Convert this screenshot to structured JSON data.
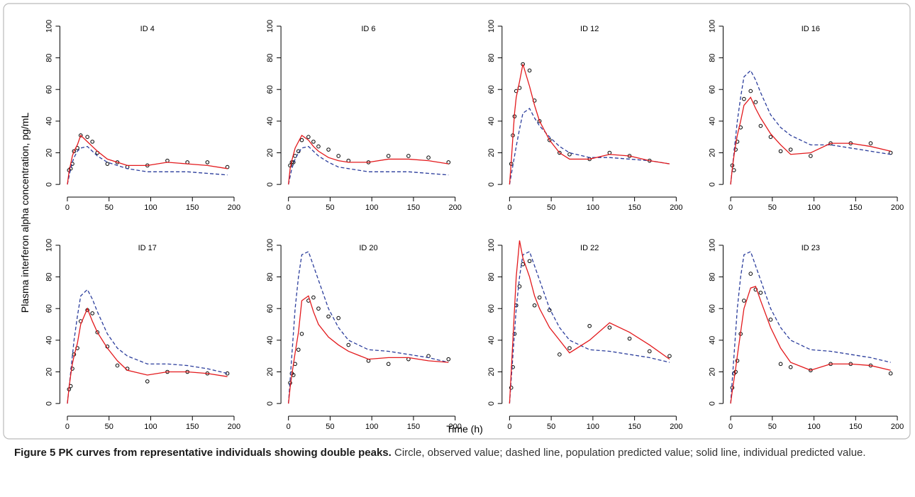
{
  "chart_data": [
    {
      "type": "line",
      "title": "ID 4",
      "x": [
        0,
        2,
        4,
        6,
        8,
        12,
        16,
        24,
        30,
        36,
        48,
        60,
        72,
        96,
        120,
        144,
        168,
        192
      ],
      "xlim": [
        -9,
        201
      ],
      "ylim": [
        -8,
        104
      ],
      "xticks": [
        0,
        50,
        100,
        150,
        200
      ],
      "yticks": [
        0,
        20,
        40,
        60,
        80,
        100
      ],
      "series": [
        {
          "style": "points",
          "color": "#000000",
          "values": [
            null,
            9,
            10,
            13,
            21,
            23,
            31,
            30,
            27,
            20,
            13,
            14,
            11,
            12,
            15,
            14,
            14,
            11
          ]
        },
        {
          "style": "dashed",
          "color": "#2b3d9c",
          "values": [
            0,
            5,
            10,
            14,
            17,
            21,
            23,
            24,
            21,
            18,
            14,
            12,
            10,
            8,
            8,
            8,
            7,
            6
          ]
        },
        {
          "style": "solid",
          "color": "#e3191c",
          "values": [
            0,
            8,
            13,
            18,
            21,
            25,
            31,
            27,
            24,
            21,
            16,
            14,
            12,
            12,
            14,
            13,
            12,
            10
          ]
        }
      ]
    },
    {
      "type": "line",
      "title": "ID 6",
      "x": [
        0,
        2,
        4,
        6,
        8,
        12,
        16,
        24,
        30,
        36,
        48,
        60,
        72,
        96,
        120,
        144,
        168,
        192
      ],
      "xlim": [
        -9,
        201
      ],
      "ylim": [
        -8,
        104
      ],
      "xticks": [
        0,
        50,
        100,
        150,
        200
      ],
      "yticks": [
        0,
        20,
        40,
        60,
        80,
        100
      ],
      "series": [
        {
          "style": "points",
          "color": "#000000",
          "values": [
            null,
            12,
            14,
            14,
            18,
            21,
            28,
            30,
            27,
            24,
            22,
            18,
            15,
            14,
            18,
            18,
            17,
            14
          ]
        },
        {
          "style": "dashed",
          "color": "#2b3d9c",
          "values": [
            0,
            5,
            10,
            13,
            16,
            20,
            23,
            24,
            21,
            18,
            14,
            11,
            10,
            8,
            8,
            8,
            7,
            6
          ]
        },
        {
          "style": "solid",
          "color": "#e3191c",
          "values": [
            0,
            10,
            15,
            19,
            23,
            27,
            31,
            28,
            24,
            21,
            17,
            15,
            14,
            14,
            16,
            16,
            15,
            13
          ]
        }
      ]
    },
    {
      "type": "line",
      "title": "ID 12",
      "x": [
        0,
        2,
        4,
        6,
        8,
        12,
        16,
        24,
        30,
        36,
        48,
        60,
        72,
        96,
        120,
        144,
        168,
        192
      ],
      "xlim": [
        -9,
        201
      ],
      "ylim": [
        -8,
        104
      ],
      "xticks": [
        0,
        50,
        100,
        150,
        200
      ],
      "yticks": [
        0,
        20,
        40,
        60,
        80,
        100
      ],
      "series": [
        {
          "style": "points",
          "color": "#000000",
          "values": [
            null,
            13,
            31,
            43,
            59,
            61,
            76,
            72,
            53,
            40,
            28,
            20,
            19,
            16,
            20,
            18,
            15,
            null
          ]
        },
        {
          "style": "dashed",
          "color": "#2b3d9c",
          "values": [
            0,
            6,
            12,
            18,
            24,
            35,
            45,
            48,
            42,
            37,
            30,
            24,
            20,
            17,
            17,
            16,
            15,
            13
          ]
        },
        {
          "style": "solid",
          "color": "#e3191c",
          "values": [
            0,
            14,
            30,
            45,
            55,
            65,
            76,
            62,
            50,
            40,
            28,
            20,
            16,
            16,
            19,
            18,
            15,
            13
          ]
        }
      ]
    },
    {
      "type": "line",
      "title": "ID 16",
      "x": [
        0,
        2,
        4,
        6,
        8,
        12,
        16,
        24,
        30,
        36,
        48,
        60,
        72,
        96,
        120,
        144,
        168,
        192
      ],
      "xlim": [
        -9,
        201
      ],
      "ylim": [
        -8,
        104
      ],
      "xticks": [
        0,
        50,
        100,
        150,
        200
      ],
      "yticks": [
        0,
        20,
        40,
        60,
        80,
        100
      ],
      "series": [
        {
          "style": "points",
          "color": "#000000",
          "values": [
            null,
            12,
            9,
            22,
            27,
            36,
            54,
            59,
            52,
            37,
            30,
            21,
            22,
            18,
            26,
            26,
            26,
            20
          ]
        },
        {
          "style": "dashed",
          "color": "#2b3d9c",
          "values": [
            0,
            10,
            20,
            30,
            40,
            55,
            68,
            72,
            66,
            58,
            44,
            36,
            31,
            25,
            25,
            23,
            21,
            19
          ]
        },
        {
          "style": "solid",
          "color": "#e3191c",
          "values": [
            0,
            10,
            18,
            25,
            31,
            40,
            50,
            55,
            48,
            42,
            32,
            25,
            19,
            20,
            26,
            26,
            24,
            21
          ]
        }
      ]
    },
    {
      "type": "line",
      "title": "ID 17",
      "x": [
        0,
        2,
        4,
        6,
        8,
        12,
        16,
        24,
        30,
        36,
        48,
        60,
        72,
        96,
        120,
        144,
        168,
        192
      ],
      "xlim": [
        -9,
        201
      ],
      "ylim": [
        -8,
        104
      ],
      "xticks": [
        0,
        50,
        100,
        150,
        200
      ],
      "yticks": [
        0,
        20,
        40,
        60,
        80,
        100
      ],
      "series": [
        {
          "style": "points",
          "color": "#000000",
          "values": [
            null,
            9,
            11,
            22,
            31,
            35,
            52,
            59,
            57,
            45,
            36,
            24,
            22,
            14,
            20,
            20,
            19,
            19
          ]
        },
        {
          "style": "dashed",
          "color": "#2b3d9c",
          "values": [
            0,
            10,
            20,
            30,
            40,
            55,
            68,
            72,
            66,
            58,
            44,
            35,
            30,
            25,
            25,
            24,
            22,
            19
          ]
        },
        {
          "style": "solid",
          "color": "#e3191c",
          "values": [
            0,
            10,
            18,
            25,
            30,
            38,
            50,
            60,
            52,
            45,
            35,
            27,
            21,
            18,
            20,
            20,
            19,
            17
          ]
        }
      ]
    },
    {
      "type": "line",
      "title": "ID 20",
      "x": [
        0,
        2,
        4,
        6,
        8,
        12,
        16,
        24,
        30,
        36,
        48,
        60,
        72,
        96,
        120,
        144,
        168,
        192
      ],
      "xlim": [
        -9,
        201
      ],
      "ylim": [
        -8,
        104
      ],
      "xticks": [
        0,
        50,
        100,
        150,
        200
      ],
      "yticks": [
        0,
        20,
        40,
        60,
        80,
        100
      ],
      "series": [
        {
          "style": "points",
          "color": "#000000",
          "values": [
            null,
            13,
            19,
            18,
            25,
            34,
            44,
            65,
            67,
            60,
            55,
            54,
            37,
            27,
            25,
            28,
            30,
            28
          ]
        },
        {
          "style": "dashed",
          "color": "#2b3d9c",
          "values": [
            0,
            15,
            30,
            45,
            60,
            80,
            94,
            96,
            87,
            78,
            60,
            48,
            40,
            34,
            33,
            31,
            29,
            26
          ]
        },
        {
          "style": "solid",
          "color": "#e3191c",
          "values": [
            0,
            10,
            18,
            25,
            32,
            45,
            65,
            68,
            58,
            50,
            42,
            37,
            33,
            28,
            29,
            29,
            27,
            26
          ]
        }
      ]
    },
    {
      "type": "line",
      "title": "ID 22",
      "x": [
        0,
        2,
        4,
        6,
        8,
        12,
        16,
        24,
        30,
        36,
        48,
        60,
        72,
        96,
        120,
        144,
        168,
        192
      ],
      "xlim": [
        -9,
        201
      ],
      "ylim": [
        -8,
        104
      ],
      "xticks": [
        0,
        50,
        100,
        150,
        200
      ],
      "yticks": [
        0,
        20,
        40,
        60,
        80,
        100
      ],
      "series": [
        {
          "style": "points",
          "color": "#000000",
          "values": [
            null,
            10,
            23,
            44,
            62,
            74,
            88,
            90,
            62,
            67,
            59,
            31,
            35,
            49,
            48,
            41,
            33,
            30
          ]
        },
        {
          "style": "dashed",
          "color": "#2b3d9c",
          "values": [
            0,
            15,
            30,
            45,
            60,
            80,
            94,
            96,
            87,
            78,
            60,
            48,
            40,
            34,
            33,
            31,
            29,
            26
          ]
        },
        {
          "style": "solid",
          "color": "#e3191c",
          "values": [
            0,
            20,
            40,
            60,
            80,
            103,
            92,
            80,
            68,
            60,
            48,
            40,
            32,
            40,
            51,
            45,
            37,
            28
          ]
        }
      ]
    },
    {
      "type": "line",
      "title": "ID 23",
      "x": [
        0,
        2,
        4,
        6,
        8,
        12,
        16,
        24,
        30,
        36,
        48,
        60,
        72,
        96,
        120,
        144,
        168,
        192
      ],
      "xlim": [
        -9,
        201
      ],
      "ylim": [
        -8,
        104
      ],
      "xticks": [
        0,
        50,
        100,
        150,
        200
      ],
      "yticks": [
        0,
        20,
        40,
        60,
        80,
        100
      ],
      "series": [
        {
          "style": "points",
          "color": "#000000",
          "values": [
            null,
            10,
            19,
            20,
            27,
            44,
            65,
            82,
            72,
            70,
            53,
            25,
            23,
            21,
            25,
            25,
            24,
            19
          ]
        },
        {
          "style": "dashed",
          "color": "#2b3d9c",
          "values": [
            0,
            15,
            30,
            45,
            60,
            80,
            94,
            96,
            87,
            78,
            60,
            48,
            40,
            34,
            33,
            31,
            29,
            26
          ]
        },
        {
          "style": "solid",
          "color": "#e3191c",
          "values": [
            0,
            8,
            15,
            22,
            30,
            45,
            60,
            73,
            74,
            65,
            48,
            35,
            26,
            21,
            25,
            25,
            24,
            21
          ]
        }
      ]
    }
  ],
  "ylabel": "Plasma interferon alpha concentration, pg/mL",
  "xlabel": "Time (h)",
  "caption": {
    "title": "Figure 5 PK curves from representative individuals showing double peaks.",
    "text": "Circle, observed value; dashed line, population predicted value; solid line, individual predicted value."
  }
}
